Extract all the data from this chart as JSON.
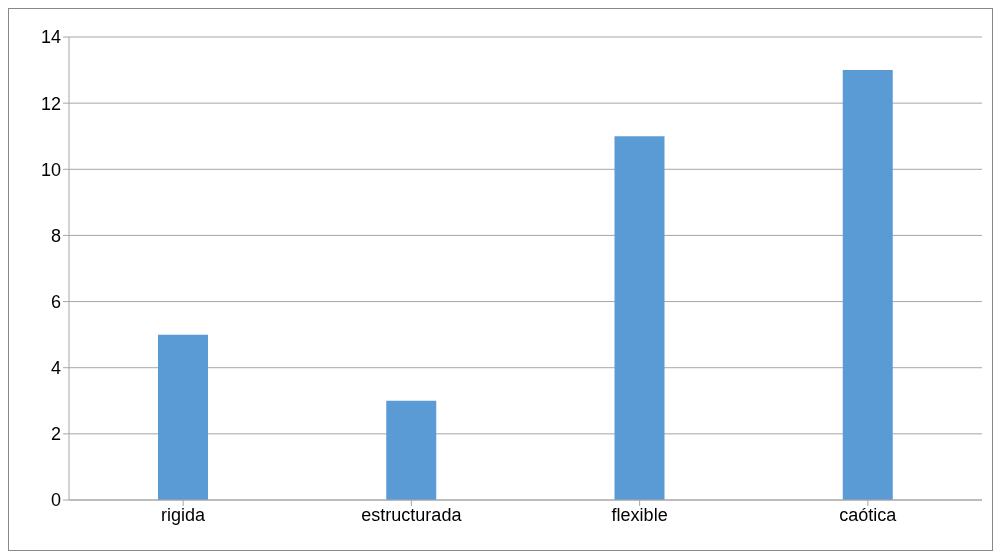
{
  "chart_data": {
    "type": "bar",
    "categories": [
      "rigida",
      "estructurada",
      "flexible",
      "caótica"
    ],
    "values": [
      5,
      3,
      11,
      13
    ],
    "color": "#5b9bd5",
    "ylim": [
      0,
      14
    ],
    "yticks": [
      0,
      2,
      4,
      6,
      8,
      10,
      12,
      14
    ],
    "grid": "y"
  }
}
